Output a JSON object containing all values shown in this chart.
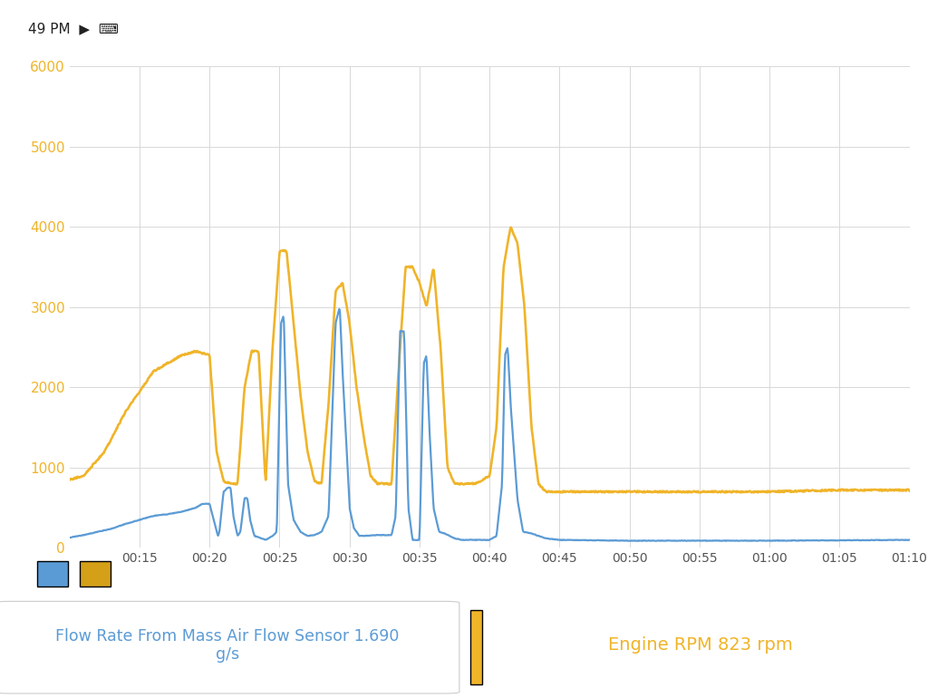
{
  "background_color": "#ffffff",
  "plot_bg_color": "#ffffff",
  "grid_color": "#d8d8d8",
  "blue_color": "#5b9bd5",
  "gold_color": "#f0b429",
  "legend_gold": "#d4a017",
  "ylim": [
    0,
    6000
  ],
  "yticks": [
    0,
    1000,
    2000,
    3000,
    4000,
    5000,
    6000
  ],
  "xtick_labels": [
    "00:15",
    "00:20",
    "00:25",
    "00:30",
    "00:35",
    "00:40",
    "00:45",
    "00:50",
    "00:55",
    "01:00",
    "01:05",
    "01:10"
  ],
  "bottom_text_blue": "Flow Rate From Mass Air Flow Sensor 1.690\ng/s",
  "bottom_text_gold": "Engine RPM 823 rpm",
  "header_bg": "#f0f0f0",
  "footer_bg": "#eeeeee"
}
